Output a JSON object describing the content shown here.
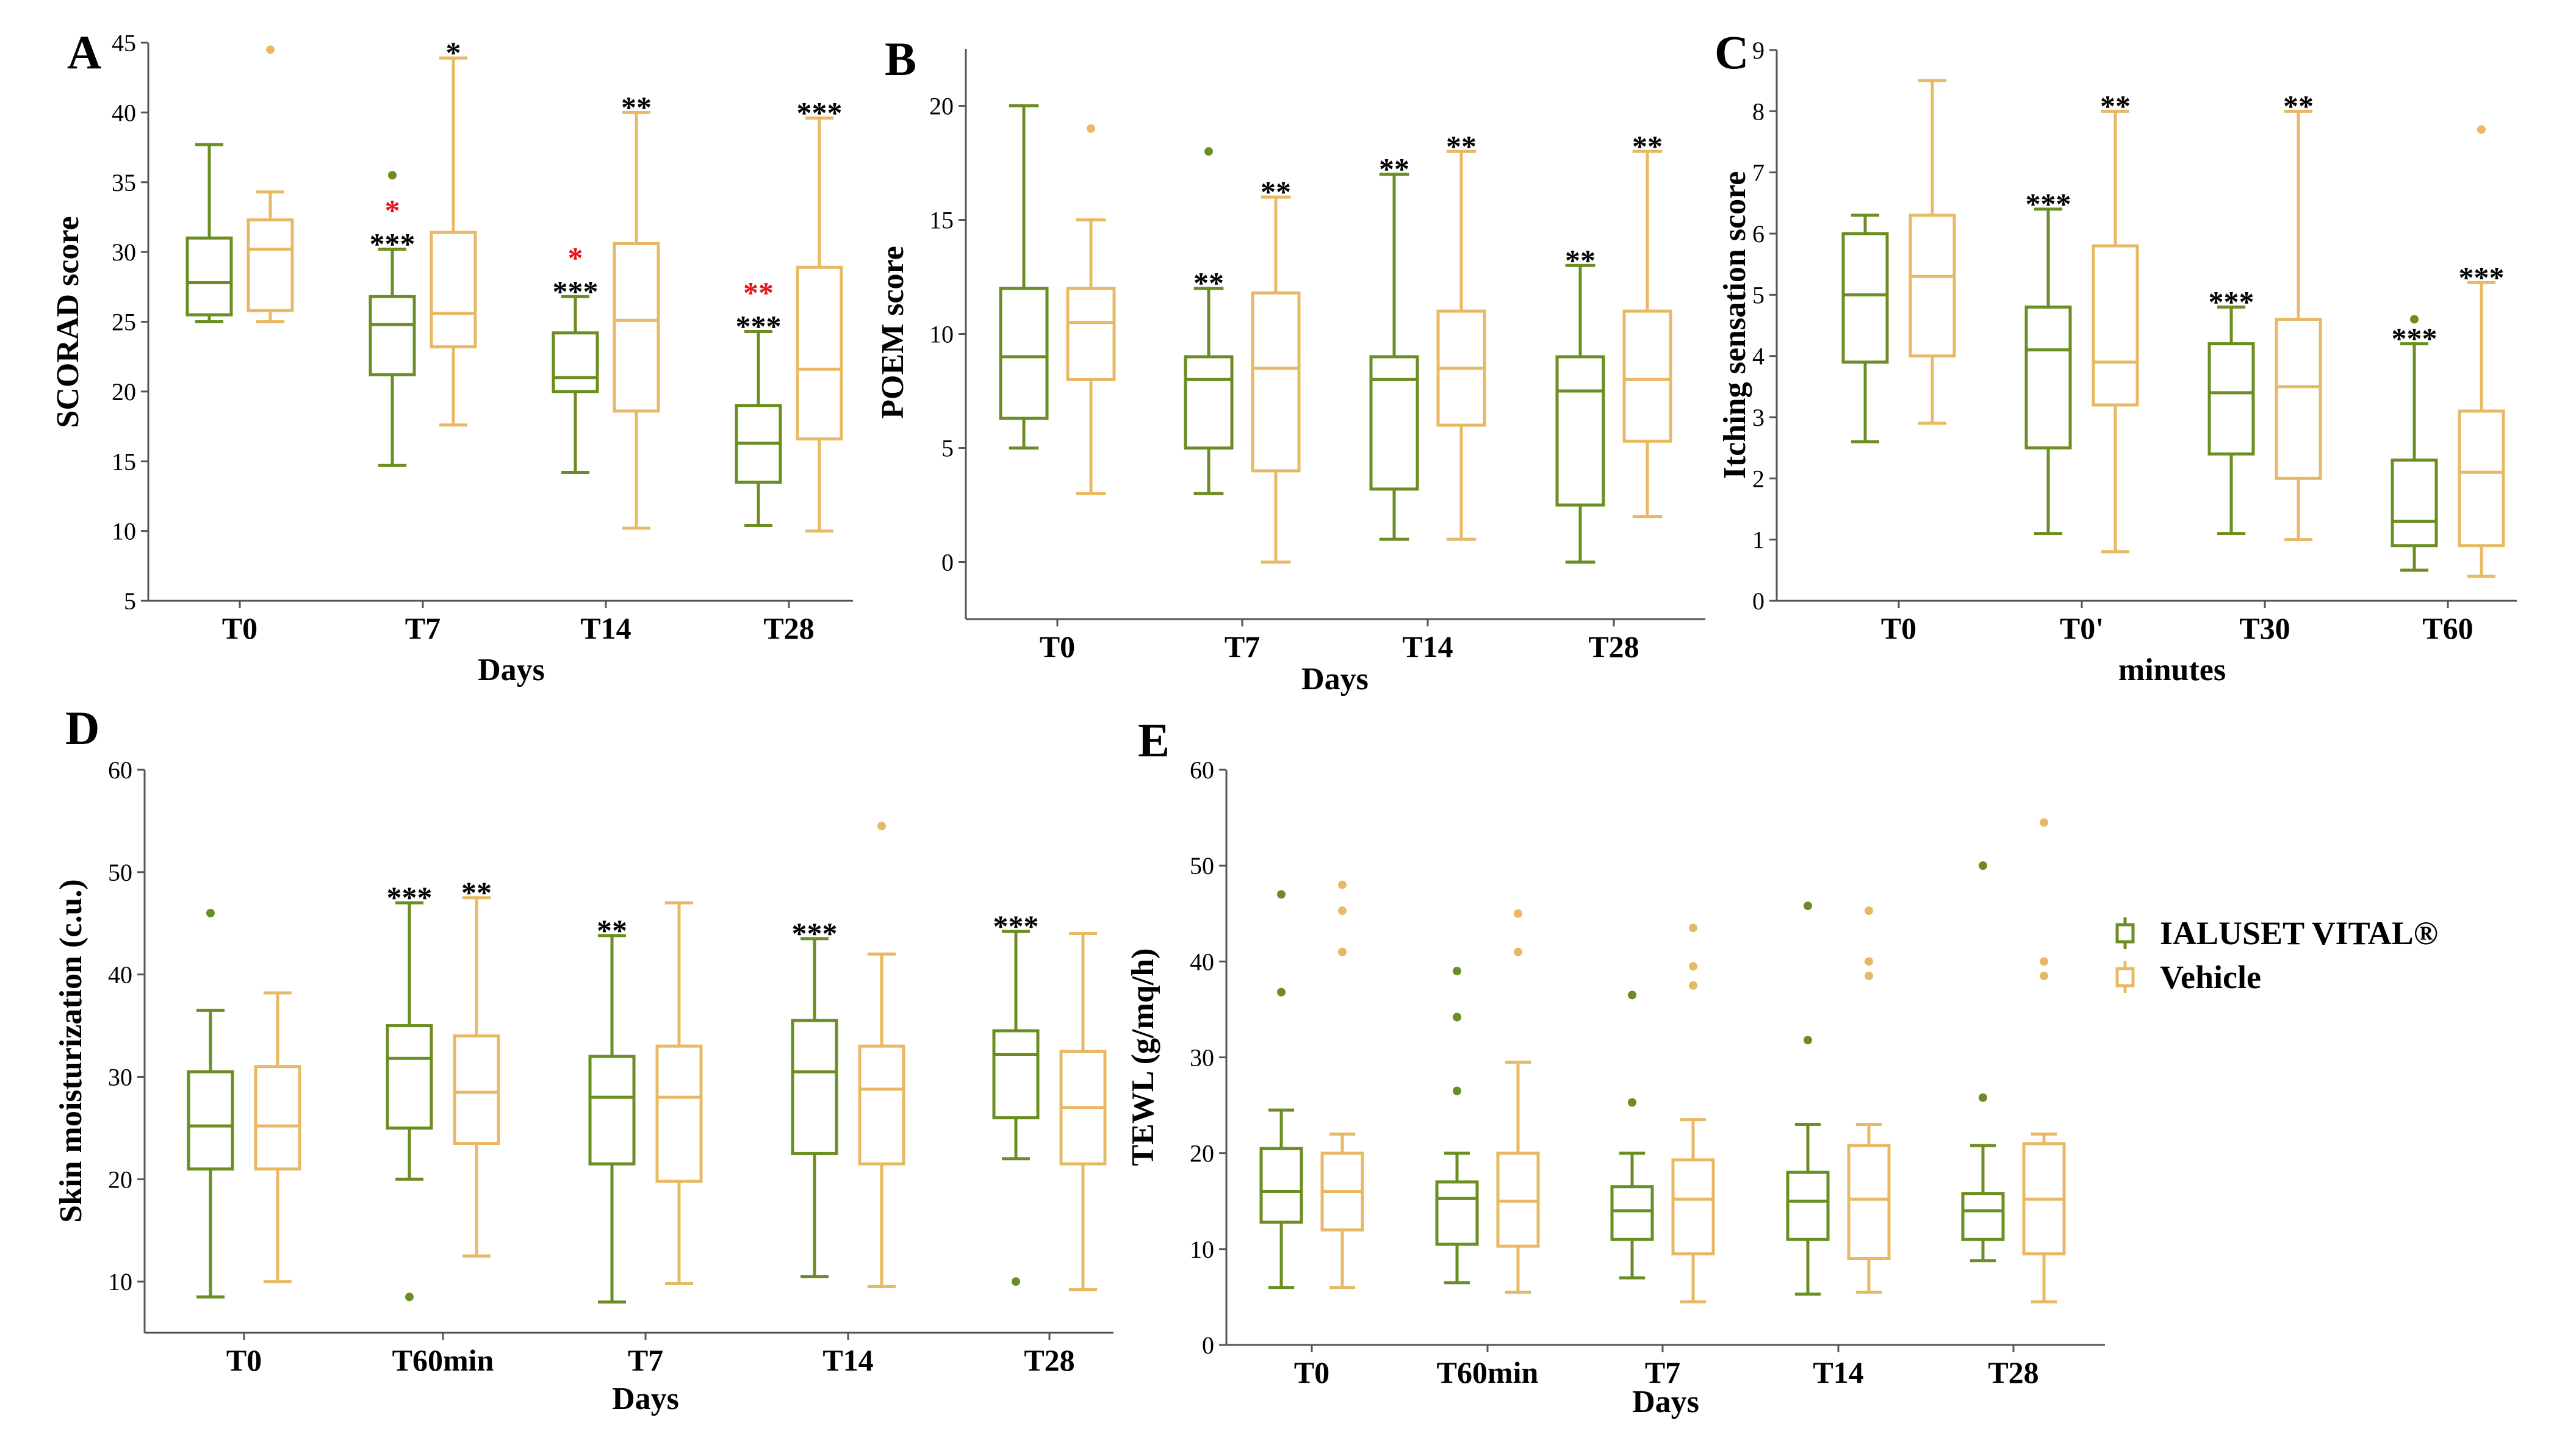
{
  "colors": {
    "ialuset": "#6b8e23",
    "vehicle": "#e8b964",
    "axis": "#555555",
    "star_black": "#000000",
    "star_red": "#e8141c"
  },
  "legend": {
    "items": [
      {
        "label": "IALUSET VITAL®",
        "series": "ialuset"
      },
      {
        "label": "Vehicle",
        "series": "vehicle"
      }
    ]
  },
  "chart_data": [
    {
      "panel": "A",
      "type": "box",
      "xlabel": "Days",
      "ylabel": "SCORAD score",
      "ylim": [
        5,
        45
      ],
      "yticks": [
        "5",
        "10",
        "15",
        "20",
        "25",
        "30",
        "35",
        "40",
        "45"
      ],
      "categories": [
        "T0",
        "T7",
        "T14",
        "T28"
      ],
      "series": [
        {
          "name": "IALUSET VITAL®",
          "key": "ialuset",
          "boxes": [
            {
              "min": 25,
              "q1": 25.5,
              "median": 27.8,
              "q3": 31,
              "max": 37.7,
              "outliers": []
            },
            {
              "min": 14.7,
              "q1": 21.2,
              "median": 24.8,
              "q3": 26.8,
              "max": 30.2,
              "outliers": [
                35.5
              ],
              "stars": [
                {
                  "text": "*",
                  "color": "red"
                },
                {
                  "text": "***",
                  "color": "black"
                }
              ]
            },
            {
              "min": 14.2,
              "q1": 20,
              "median": 21,
              "q3": 24.2,
              "max": 26.8,
              "outliers": [],
              "stars": [
                {
                  "text": "*",
                  "color": "red"
                },
                {
                  "text": "***",
                  "color": "black"
                }
              ]
            },
            {
              "min": 10.4,
              "q1": 13.5,
              "median": 16.3,
              "q3": 19,
              "max": 24.3,
              "outliers": [],
              "stars": [
                {
                  "text": "**",
                  "color": "red"
                },
                {
                  "text": "***",
                  "color": "black"
                }
              ]
            }
          ]
        },
        {
          "name": "Vehicle",
          "key": "vehicle",
          "boxes": [
            {
              "min": 25,
              "q1": 25.8,
              "median": 30.2,
              "q3": 32.3,
              "max": 34.3,
              "outliers": [
                44.5
              ]
            },
            {
              "min": 17.6,
              "q1": 23.2,
              "median": 25.6,
              "q3": 31.4,
              "max": 43.9,
              "outliers": [],
              "stars": [
                {
                  "text": "*",
                  "color": "black"
                }
              ]
            },
            {
              "min": 10.2,
              "q1": 18.6,
              "median": 25.1,
              "q3": 30.6,
              "max": 40,
              "outliers": [],
              "stars": [
                {
                  "text": "**",
                  "color": "black"
                }
              ]
            },
            {
              "min": 10,
              "q1": 16.6,
              "median": 21.6,
              "q3": 28.9,
              "max": 39.6,
              "outliers": [],
              "stars": [
                {
                  "text": "***",
                  "color": "black"
                }
              ]
            }
          ]
        }
      ]
    },
    {
      "panel": "B",
      "type": "box",
      "xlabel": "Days",
      "ylabel": "POEM score",
      "ylim": [
        -2.5,
        22.5
      ],
      "yticks": [
        "0",
        "5",
        "10",
        "15",
        "20"
      ],
      "categories": [
        "T0",
        "T7",
        "T14",
        "T28"
      ],
      "series": [
        {
          "name": "IALUSET VITAL®",
          "key": "ialuset",
          "boxes": [
            {
              "min": 5,
              "q1": 6.3,
              "median": 9,
              "q3": 12,
              "max": 20,
              "outliers": []
            },
            {
              "min": 3,
              "q1": 5,
              "median": 8,
              "q3": 9,
              "max": 12,
              "outliers": [
                18
              ],
              "stars": [
                {
                  "text": "**",
                  "color": "black"
                }
              ]
            },
            {
              "min": 1,
              "q1": 3.2,
              "median": 8,
              "q3": 9,
              "max": 17,
              "outliers": [],
              "stars": [
                {
                  "text": "**",
                  "color": "black"
                }
              ]
            },
            {
              "min": 0,
              "q1": 2.5,
              "median": 7.5,
              "q3": 9,
              "max": 13,
              "outliers": [],
              "stars": [
                {
                  "text": "**",
                  "color": "black"
                }
              ]
            }
          ]
        },
        {
          "name": "Vehicle",
          "key": "vehicle",
          "boxes": [
            {
              "min": 3,
              "q1": 8,
              "median": 10.5,
              "q3": 12,
              "max": 15,
              "outliers": [
                19
              ]
            },
            {
              "min": 0,
              "q1": 4,
              "median": 8.5,
              "q3": 11.8,
              "max": 16,
              "outliers": [],
              "stars": [
                {
                  "text": "**",
                  "color": "black"
                }
              ]
            },
            {
              "min": 1,
              "q1": 6,
              "median": 8.5,
              "q3": 11,
              "max": 18,
              "outliers": [],
              "stars": [
                {
                  "text": "**",
                  "color": "black"
                }
              ]
            },
            {
              "min": 2,
              "q1": 5.3,
              "median": 8,
              "q3": 11,
              "max": 18,
              "outliers": [],
              "stars": [
                {
                  "text": "**",
                  "color": "black"
                }
              ]
            }
          ]
        }
      ]
    },
    {
      "panel": "C",
      "type": "box",
      "xlabel": "minutes",
      "ylabel": "Itching sensation score",
      "ylim": [
        0,
        9
      ],
      "yticks": [
        "0",
        "1",
        "2",
        "3",
        "4",
        "5",
        "6",
        "7",
        "8",
        "9"
      ],
      "categories": [
        "T0",
        "T0'",
        "T30",
        "T60"
      ],
      "series": [
        {
          "name": "IALUSET VITAL®",
          "key": "ialuset",
          "boxes": [
            {
              "min": 2.6,
              "q1": 3.9,
              "median": 5,
              "q3": 6,
              "max": 6.3,
              "outliers": []
            },
            {
              "min": 1.1,
              "q1": 2.5,
              "median": 4.1,
              "q3": 4.8,
              "max": 6.4,
              "outliers": [],
              "stars": [
                {
                  "text": "***",
                  "color": "black"
                }
              ]
            },
            {
              "min": 1.1,
              "q1": 2.4,
              "median": 3.4,
              "q3": 4.2,
              "max": 4.8,
              "outliers": [],
              "stars": [
                {
                  "text": "***",
                  "color": "black"
                }
              ]
            },
            {
              "min": 0.5,
              "q1": 0.9,
              "median": 1.3,
              "q3": 2.3,
              "max": 4.2,
              "outliers": [
                4.6
              ],
              "stars": [
                {
                  "text": "***",
                  "color": "black"
                }
              ]
            }
          ]
        },
        {
          "name": "Vehicle",
          "key": "vehicle",
          "boxes": [
            {
              "min": 2.9,
              "q1": 4,
              "median": 5.3,
              "q3": 6.3,
              "max": 8.5,
              "outliers": []
            },
            {
              "min": 0.8,
              "q1": 3.2,
              "median": 3.9,
              "q3": 5.8,
              "max": 8,
              "outliers": [],
              "stars": [
                {
                  "text": "**",
                  "color": "black"
                }
              ]
            },
            {
              "min": 1,
              "q1": 2,
              "median": 3.5,
              "q3": 4.6,
              "max": 8,
              "outliers": [],
              "stars": [
                {
                  "text": "**",
                  "color": "black"
                }
              ]
            },
            {
              "min": 0.4,
              "q1": 0.9,
              "median": 2.1,
              "q3": 3.1,
              "max": 5.2,
              "outliers": [
                7.7
              ],
              "stars": [
                {
                  "text": "***",
                  "color": "black"
                }
              ]
            }
          ]
        }
      ]
    },
    {
      "panel": "D",
      "type": "box",
      "xlabel": "Days",
      "ylabel": "Skin moisturization (c.u.)",
      "ylim": [
        5,
        60
      ],
      "yticks": [
        "10",
        "20",
        "30",
        "40",
        "50",
        "60"
      ],
      "categories": [
        "T0",
        "T60min",
        "T7",
        "T14",
        "T28"
      ],
      "series": [
        {
          "name": "IALUSET VITAL®",
          "key": "ialuset",
          "boxes": [
            {
              "min": 8.5,
              "q1": 21,
              "median": 25.2,
              "q3": 30.5,
              "max": 36.5,
              "outliers": [
                46
              ]
            },
            {
              "min": 20,
              "q1": 25,
              "median": 31.8,
              "q3": 35,
              "max": 47,
              "outliers": [
                8.5
              ],
              "stars": [
                {
                  "text": "***",
                  "color": "black"
                }
              ]
            },
            {
              "min": 8,
              "q1": 21.5,
              "median": 28,
              "q3": 32,
              "max": 43.8,
              "outliers": [],
              "stars": [
                {
                  "text": "**",
                  "color": "black"
                }
              ]
            },
            {
              "min": 10.5,
              "q1": 22.5,
              "median": 30.5,
              "q3": 35.5,
              "max": 43.5,
              "outliers": [],
              "stars": [
                {
                  "text": "***",
                  "color": "black"
                }
              ]
            },
            {
              "min": 22,
              "q1": 26,
              "median": 32.2,
              "q3": 34.5,
              "max": 44.2,
              "outliers": [
                10
              ],
              "stars": [
                {
                  "text": "***",
                  "color": "black"
                }
              ]
            }
          ]
        },
        {
          "name": "Vehicle",
          "key": "vehicle",
          "boxes": [
            {
              "min": 10,
              "q1": 21,
              "median": 25.2,
              "q3": 31,
              "max": 38.2,
              "outliers": []
            },
            {
              "min": 12.5,
              "q1": 23.5,
              "median": 28.5,
              "q3": 34,
              "max": 47.5,
              "outliers": [],
              "stars": [
                {
                  "text": "**",
                  "color": "black"
                }
              ]
            },
            {
              "min": 9.8,
              "q1": 19.8,
              "median": 28,
              "q3": 33,
              "max": 47,
              "outliers": []
            },
            {
              "min": 9.5,
              "q1": 21.5,
              "median": 28.8,
              "q3": 33,
              "max": 42,
              "outliers": [
                54.5
              ]
            },
            {
              "min": 9.2,
              "q1": 21.5,
              "median": 27,
              "q3": 32.5,
              "max": 44,
              "outliers": []
            }
          ]
        }
      ]
    },
    {
      "panel": "E",
      "type": "box",
      "xlabel": "Days",
      "ylabel": "TEWL (g/mq/h)",
      "ylim": [
        0,
        60
      ],
      "yticks": [
        "0",
        "10",
        "20",
        "30",
        "40",
        "50",
        "60"
      ],
      "categories": [
        "T0",
        "T60min",
        "T7",
        "T14",
        "T28"
      ],
      "series": [
        {
          "name": "IALUSET VITAL®",
          "key": "ialuset",
          "boxes": [
            {
              "min": 6,
              "q1": 12.8,
              "median": 16,
              "q3": 20.5,
              "max": 24.5,
              "outliers": [
                36.8,
                47
              ]
            },
            {
              "min": 6.5,
              "q1": 10.5,
              "median": 15.3,
              "q3": 17,
              "max": 20,
              "outliers": [
                26.5,
                34.2,
                39
              ]
            },
            {
              "min": 7,
              "q1": 11,
              "median": 14,
              "q3": 16.5,
              "max": 20,
              "outliers": [
                25.3,
                36.5
              ]
            },
            {
              "min": 5.3,
              "q1": 11,
              "median": 15,
              "q3": 18,
              "max": 23,
              "outliers": [
                31.8,
                45.8
              ]
            },
            {
              "min": 8.8,
              "q1": 11,
              "median": 14,
              "q3": 15.8,
              "max": 20.8,
              "outliers": [
                25.8,
                50
              ]
            }
          ]
        },
        {
          "name": "Vehicle",
          "key": "vehicle",
          "boxes": [
            {
              "min": 6,
              "q1": 12,
              "median": 16,
              "q3": 20,
              "max": 22,
              "outliers": [
                41,
                45.3,
                48
              ]
            },
            {
              "min": 5.5,
              "q1": 10.3,
              "median": 15,
              "q3": 20,
              "max": 29.5,
              "outliers": [
                41,
                45
              ]
            },
            {
              "min": 4.5,
              "q1": 9.5,
              "median": 15.2,
              "q3": 19.3,
              "max": 23.5,
              "outliers": [
                37.5,
                39.5,
                43.5
              ]
            },
            {
              "min": 5.5,
              "q1": 9,
              "median": 15.2,
              "q3": 20.8,
              "max": 23,
              "outliers": [
                38.5,
                40,
                45.3
              ]
            },
            {
              "min": 4.5,
              "q1": 9.5,
              "median": 15.2,
              "q3": 21,
              "max": 22,
              "outliers": [
                38.5,
                40,
                54.5
              ]
            }
          ]
        }
      ]
    }
  ]
}
